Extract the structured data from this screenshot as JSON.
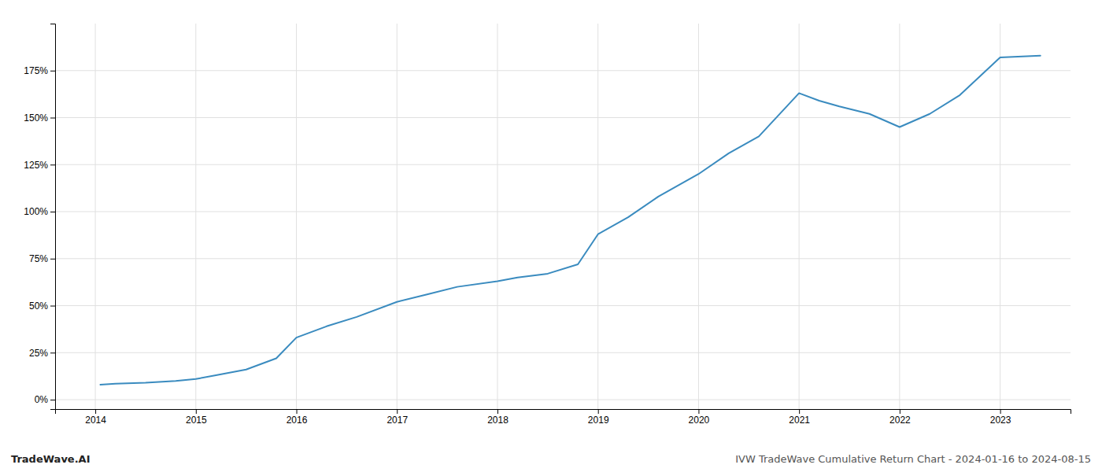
{
  "chart_data": {
    "type": "line",
    "x": [
      2014.05,
      2014.2,
      2014.5,
      2014.8,
      2015.0,
      2015.2,
      2015.5,
      2015.8,
      2016.0,
      2016.3,
      2016.6,
      2017.0,
      2017.3,
      2017.6,
      2018.0,
      2018.2,
      2018.5,
      2018.8,
      2019.0,
      2019.3,
      2019.6,
      2020.0,
      2020.3,
      2020.6,
      2021.0,
      2021.2,
      2021.4,
      2021.7,
      2022.0,
      2022.3,
      2022.6,
      2023.0,
      2023.4
    ],
    "values": [
      8,
      8.5,
      9,
      10,
      11,
      13,
      16,
      22,
      33,
      39,
      44,
      52,
      56,
      60,
      63,
      65,
      67,
      72,
      88,
      97,
      108,
      120,
      131,
      140,
      163,
      159,
      156,
      152,
      145,
      152,
      162,
      182,
      183
    ],
    "color": "#3a8bbf",
    "xlim": [
      2013.6,
      2023.7
    ],
    "xticks": [
      2014,
      2015,
      2016,
      2017,
      2018,
      2019,
      2020,
      2021,
      2022,
      2023
    ],
    "ylim": [
      -5,
      200
    ],
    "yticks": [
      {
        "value": 0,
        "label": "0%"
      },
      {
        "value": 25,
        "label": "25%"
      },
      {
        "value": 50,
        "label": "50%"
      },
      {
        "value": 75,
        "label": "75%"
      },
      {
        "value": 100,
        "label": "100%"
      },
      {
        "value": 125,
        "label": "125%"
      },
      {
        "value": 150,
        "label": "150%"
      },
      {
        "value": 175,
        "label": "175%"
      }
    ],
    "grid": true,
    "annotations": [
      "TradeWave.AI",
      "IVW TradeWave Cumulative Return Chart - 2024-01-16 to 2024-08-15"
    ]
  }
}
